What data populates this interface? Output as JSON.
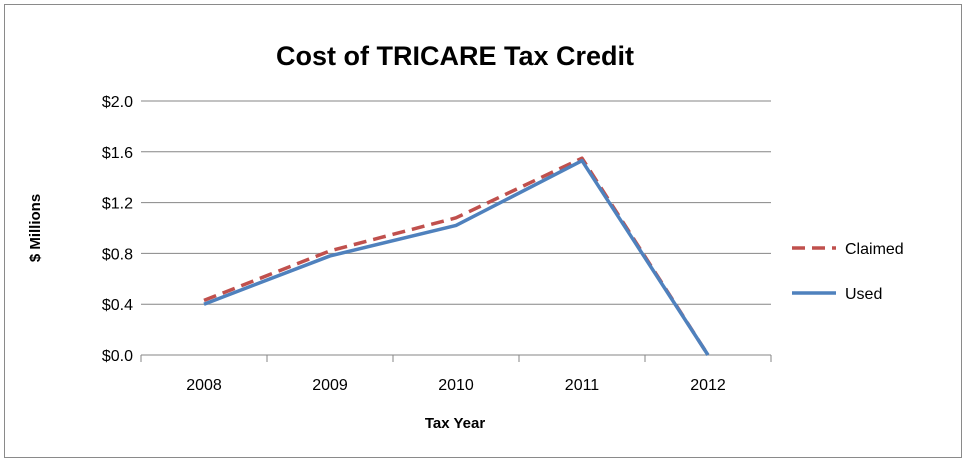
{
  "chart_data": {
    "type": "line",
    "title": "Cost of TRICARE Tax Credit",
    "xlabel": "Tax Year",
    "ylabel": "$ Millions",
    "categories": [
      "2008",
      "2009",
      "2010",
      "2011",
      "2012"
    ],
    "ylim": [
      0,
      2.0
    ],
    "yticks": [
      "$0.0",
      "$0.4",
      "$0.8",
      "$1.2",
      "$1.6",
      "$2.0"
    ],
    "ytick_values": [
      0,
      0.4,
      0.8,
      1.2,
      1.6,
      2.0
    ],
    "grid": true,
    "legend_position": "right",
    "series": [
      {
        "name": "Claimed",
        "values": [
          0.43,
          0.82,
          1.08,
          1.55,
          0.0
        ],
        "color": "#c0504d",
        "style": "dashed"
      },
      {
        "name": "Used",
        "values": [
          0.4,
          0.78,
          1.02,
          1.53,
          0.0
        ],
        "color": "#4f81bd",
        "style": "solid"
      }
    ]
  }
}
